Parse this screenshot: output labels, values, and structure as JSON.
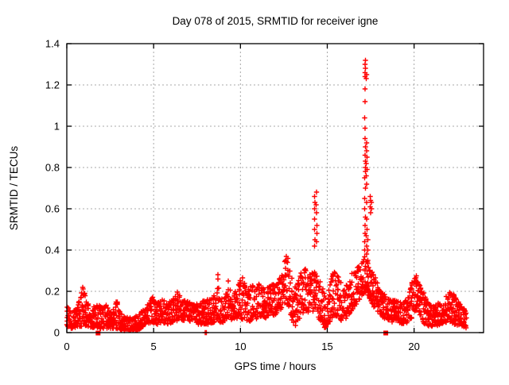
{
  "title": "Day 078 of 2015, SRMTID for receiver igne",
  "chart_data": {
    "type": "scatter",
    "title": "Day 078 of 2015, SRMTID for receiver igne",
    "xlabel": "GPS time / hours",
    "ylabel": "SRMTID / TECUs",
    "xlim": [
      0,
      24
    ],
    "ylim": [
      0,
      1.4
    ],
    "xticks": {
      "values": [
        0,
        5,
        10,
        15,
        20
      ],
      "labels": [
        "0",
        "5",
        "10",
        "15",
        "20"
      ]
    },
    "yticks": {
      "values": [
        0,
        0.2,
        0.4,
        0.6,
        0.8,
        1.0,
        1.2,
        1.4
      ],
      "labels": [
        "0",
        "0.2",
        "0.4",
        "0.6",
        "0.8",
        "1",
        "1.2",
        "1.4"
      ]
    },
    "grid": true,
    "legend": "none",
    "marker": "plus",
    "marker_color": "#ff0000",
    "grid_color": "#a8a8a8",
    "border_color": "#000000",
    "description": "Dense red plus-marker scatter of SRMTID vs GPS time; baseline band 0.02-0.2 TECUs with spikes near 14.3 h (0.68) and a large spike near 17.2 h reaching 1.32",
    "band_envelope": [
      [
        0.0,
        0.02,
        0.13
      ],
      [
        0.3,
        0.02,
        0.1
      ],
      [
        0.6,
        0.03,
        0.12
      ],
      [
        0.85,
        0.03,
        0.2
      ],
      [
        0.95,
        0.04,
        0.22
      ],
      [
        1.1,
        0.03,
        0.17
      ],
      [
        1.3,
        0.03,
        0.14
      ],
      [
        1.5,
        0.02,
        0.12
      ],
      [
        1.7,
        0.02,
        0.14
      ],
      [
        1.9,
        0.02,
        0.13
      ],
      [
        2.1,
        0.02,
        0.12
      ],
      [
        2.3,
        0.02,
        0.14
      ],
      [
        2.5,
        0.02,
        0.1
      ],
      [
        2.7,
        0.02,
        0.14
      ],
      [
        2.9,
        0.02,
        0.16
      ],
      [
        3.1,
        0.01,
        0.11
      ],
      [
        3.4,
        0.01,
        0.08
      ],
      [
        3.7,
        0.01,
        0.07
      ],
      [
        4.0,
        0.01,
        0.08
      ],
      [
        4.3,
        0.02,
        0.1
      ],
      [
        4.6,
        0.04,
        0.13
      ],
      [
        4.9,
        0.05,
        0.18
      ],
      [
        5.2,
        0.04,
        0.15
      ],
      [
        5.5,
        0.05,
        0.16
      ],
      [
        5.8,
        0.04,
        0.14
      ],
      [
        6.1,
        0.05,
        0.16
      ],
      [
        6.4,
        0.06,
        0.21
      ],
      [
        6.7,
        0.06,
        0.16
      ],
      [
        7.0,
        0.06,
        0.15
      ],
      [
        7.3,
        0.05,
        0.14
      ],
      [
        7.6,
        0.04,
        0.14
      ],
      [
        7.9,
        0.04,
        0.16
      ],
      [
        8.2,
        0.04,
        0.16
      ],
      [
        8.5,
        0.05,
        0.18
      ],
      [
        8.7,
        0.05,
        0.24
      ],
      [
        9.0,
        0.05,
        0.16
      ],
      [
        9.3,
        0.06,
        0.22
      ],
      [
        9.6,
        0.06,
        0.18
      ],
      [
        9.9,
        0.07,
        0.24
      ],
      [
        10.1,
        0.06,
        0.28
      ],
      [
        10.4,
        0.05,
        0.2
      ],
      [
        10.7,
        0.06,
        0.24
      ],
      [
        11.0,
        0.07,
        0.26
      ],
      [
        11.3,
        0.07,
        0.22
      ],
      [
        11.6,
        0.07,
        0.22
      ],
      [
        11.9,
        0.08,
        0.24
      ],
      [
        12.2,
        0.1,
        0.26
      ],
      [
        12.45,
        0.12,
        0.3
      ],
      [
        12.6,
        0.15,
        0.37
      ],
      [
        12.8,
        0.12,
        0.33
      ],
      [
        13.0,
        0.05,
        0.25
      ],
      [
        13.2,
        0.03,
        0.22
      ],
      [
        13.45,
        0.08,
        0.3
      ],
      [
        13.7,
        0.1,
        0.32
      ],
      [
        13.95,
        0.1,
        0.28
      ],
      [
        14.2,
        0.1,
        0.3
      ],
      [
        14.35,
        0.12,
        0.3
      ],
      [
        14.6,
        0.05,
        0.25
      ],
      [
        14.9,
        0.02,
        0.18
      ],
      [
        15.1,
        0.04,
        0.22
      ],
      [
        15.35,
        0.08,
        0.3
      ],
      [
        15.6,
        0.08,
        0.28
      ],
      [
        15.9,
        0.05,
        0.22
      ],
      [
        16.2,
        0.08,
        0.26
      ],
      [
        16.5,
        0.12,
        0.3
      ],
      [
        16.8,
        0.15,
        0.32
      ],
      [
        17.0,
        0.18,
        0.35
      ],
      [
        17.2,
        0.2,
        0.38
      ],
      [
        17.35,
        0.18,
        0.35
      ],
      [
        17.5,
        0.15,
        0.3
      ],
      [
        17.7,
        0.12,
        0.28
      ],
      [
        17.9,
        0.1,
        0.24
      ],
      [
        18.1,
        0.08,
        0.2
      ],
      [
        18.4,
        0.06,
        0.18
      ],
      [
        18.7,
        0.05,
        0.16
      ],
      [
        19.0,
        0.06,
        0.16
      ],
      [
        19.3,
        0.04,
        0.14
      ],
      [
        19.6,
        0.05,
        0.16
      ],
      [
        19.85,
        0.07,
        0.24
      ],
      [
        20.1,
        0.1,
        0.28
      ],
      [
        20.35,
        0.08,
        0.24
      ],
      [
        20.6,
        0.04,
        0.18
      ],
      [
        20.9,
        0.03,
        0.14
      ],
      [
        21.2,
        0.03,
        0.13
      ],
      [
        21.5,
        0.04,
        0.15
      ],
      [
        21.8,
        0.05,
        0.17
      ],
      [
        22.1,
        0.05,
        0.2
      ],
      [
        22.35,
        0.04,
        0.18
      ],
      [
        22.6,
        0.03,
        0.15
      ],
      [
        22.85,
        0.03,
        0.13
      ],
      [
        23.0,
        0.02,
        0.1
      ]
    ],
    "spike_columns": [
      {
        "x": 0.9,
        "values": [
          0.22
        ]
      },
      {
        "x": 8.7,
        "values": [
          0.26,
          0.28
        ]
      },
      {
        "x": 9.3,
        "values": [
          0.25
        ]
      },
      {
        "x": 12.62,
        "values": [
          0.35,
          0.37
        ]
      },
      {
        "x": 12.72,
        "values": [
          0.34,
          0.36
        ]
      },
      {
        "x": 14.28,
        "values": [
          0.42,
          0.45,
          0.5,
          0.55,
          0.6,
          0.63,
          0.66
        ]
      },
      {
        "x": 14.38,
        "values": [
          0.44,
          0.48,
          0.52,
          0.58,
          0.62,
          0.68
        ]
      },
      {
        "x": 17.18,
        "values": [
          0.4,
          0.44,
          0.48,
          0.52,
          0.56,
          0.6,
          0.65,
          0.7,
          0.75,
          0.78,
          0.8,
          0.83,
          0.86,
          0.9,
          0.94,
          0.99,
          1.04,
          1.12,
          1.18,
          1.24,
          1.26,
          1.28,
          1.3,
          1.32
        ]
      },
      {
        "x": 17.26,
        "values": [
          0.38,
          0.42,
          0.47,
          0.55,
          0.63,
          0.72,
          0.76,
          0.79,
          0.82,
          0.85,
          0.88,
          0.92,
          1.23,
          1.25
        ]
      },
      {
        "x": 17.32,
        "values": [
          0.35,
          0.4,
          0.45,
          0.5
        ]
      },
      {
        "x": 17.5,
        "values": [
          0.58,
          0.61,
          0.64,
          0.66
        ]
      },
      {
        "x": 17.55,
        "values": [
          0.6,
          0.63
        ]
      }
    ],
    "zero_plus_points_x": [
      7.97,
      8.03
    ],
    "zero_square_markers_x": [
      1.8,
      18.37
    ]
  }
}
